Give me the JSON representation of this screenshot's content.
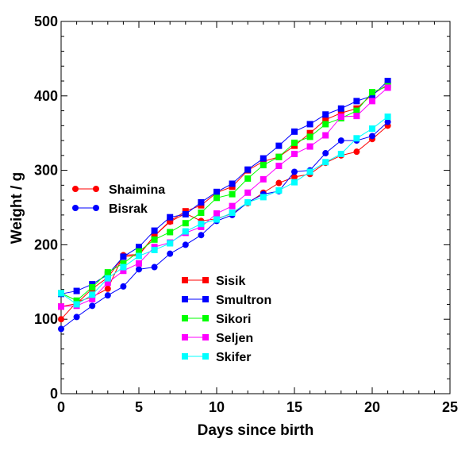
{
  "chart_data": {
    "type": "scatter",
    "xlabel": "Days since birth",
    "ylabel": "Weight / g",
    "xlim": [
      0,
      25
    ],
    "ylim": [
      0,
      500
    ],
    "x_ticks": [
      0,
      5,
      10,
      15,
      20,
      25
    ],
    "y_ticks": [
      0,
      100,
      200,
      300,
      400,
      500
    ],
    "x_tick_labels": [
      "0",
      "5",
      "10",
      "15",
      "20",
      "25"
    ],
    "y_tick_labels": [
      "0",
      "100",
      "200",
      "300",
      "400",
      "500"
    ],
    "grid": false,
    "series": [
      {
        "name": "Shaimina",
        "marker": "circle",
        "color": "#ff0000",
        "legend_group": "upper-left",
        "x": [
          0,
          1,
          2,
          3,
          4,
          5,
          6,
          7,
          8,
          9,
          10,
          11,
          12,
          13,
          14,
          15,
          16,
          17,
          18,
          19,
          20,
          21
        ],
        "y": [
          100,
          123,
          130,
          141,
          186,
          187,
          212,
          231,
          242,
          232,
          235,
          242,
          256,
          270,
          283,
          291,
          295,
          310,
          320,
          325,
          342,
          360
        ]
      },
      {
        "name": "Bisrak",
        "marker": "circle",
        "color": "#0000ff",
        "legend_group": "upper-left",
        "x": [
          0,
          1,
          2,
          3,
          4,
          5,
          6,
          7,
          8,
          9,
          10,
          11,
          12,
          13,
          14,
          15,
          16,
          17,
          18,
          19,
          20,
          21
        ],
        "y": [
          87,
          103,
          118,
          132,
          144,
          167,
          170,
          188,
          200,
          213,
          232,
          240,
          257,
          268,
          272,
          298,
          300,
          323,
          340,
          340,
          346,
          365
        ]
      },
      {
        "name": "Sisik",
        "marker": "square",
        "color": "#ff0000",
        "legend_group": "lower-center",
        "x": [
          0,
          1,
          2,
          3,
          4,
          5,
          6,
          7,
          8,
          9,
          10,
          11,
          12,
          13,
          14,
          15,
          16,
          17,
          18,
          19,
          20,
          21
        ],
        "y": [
          117,
          121,
          141,
          156,
          184,
          186,
          212,
          232,
          245,
          253,
          270,
          278,
          300,
          312,
          318,
          333,
          350,
          368,
          377,
          383,
          402,
          415
        ]
      },
      {
        "name": "Smultron",
        "marker": "square",
        "color": "#0000ff",
        "legend_group": "lower-center",
        "x": [
          0,
          1,
          2,
          3,
          4,
          5,
          6,
          7,
          8,
          9,
          10,
          11,
          12,
          13,
          14,
          15,
          16,
          17,
          18,
          19,
          20,
          21
        ],
        "y": [
          134,
          138,
          147,
          160,
          184,
          197,
          219,
          237,
          241,
          257,
          271,
          282,
          301,
          316,
          333,
          352,
          362,
          375,
          383,
          393,
          400,
          420
        ]
      },
      {
        "name": "Sikori",
        "marker": "square",
        "color": "#00ff00",
        "legend_group": "lower-center",
        "x": [
          0,
          1,
          2,
          3,
          4,
          5,
          6,
          7,
          8,
          9,
          10,
          11,
          12,
          13,
          14,
          15,
          16,
          17,
          18,
          19,
          20,
          21
        ],
        "y": [
          135,
          125,
          143,
          163,
          175,
          191,
          207,
          217,
          229,
          243,
          263,
          268,
          289,
          307,
          318,
          337,
          345,
          362,
          370,
          380,
          405,
          413
        ]
      },
      {
        "name": "Seljen",
        "marker": "square",
        "color": "#ff00ff",
        "legend_group": "lower-center",
        "x": [
          0,
          1,
          2,
          3,
          4,
          5,
          6,
          7,
          8,
          9,
          10,
          11,
          12,
          13,
          14,
          15,
          16,
          17,
          18,
          19,
          20,
          21
        ],
        "y": [
          117,
          118,
          127,
          149,
          165,
          175,
          197,
          203,
          216,
          224,
          242,
          252,
          270,
          288,
          306,
          322,
          332,
          347,
          372,
          373,
          393,
          411
        ]
      },
      {
        "name": "Skifer",
        "marker": "square",
        "color": "#00ffff",
        "legend_group": "lower-center",
        "x": [
          0,
          1,
          2,
          3,
          4,
          5,
          6,
          7,
          8,
          9,
          10,
          11,
          12,
          13,
          14,
          15,
          16,
          17,
          18,
          19,
          20,
          21
        ],
        "y": [
          135,
          120,
          133,
          155,
          170,
          185,
          193,
          202,
          218,
          228,
          234,
          243,
          257,
          264,
          273,
          284,
          298,
          311,
          322,
          343,
          356,
          372
        ]
      }
    ]
  }
}
